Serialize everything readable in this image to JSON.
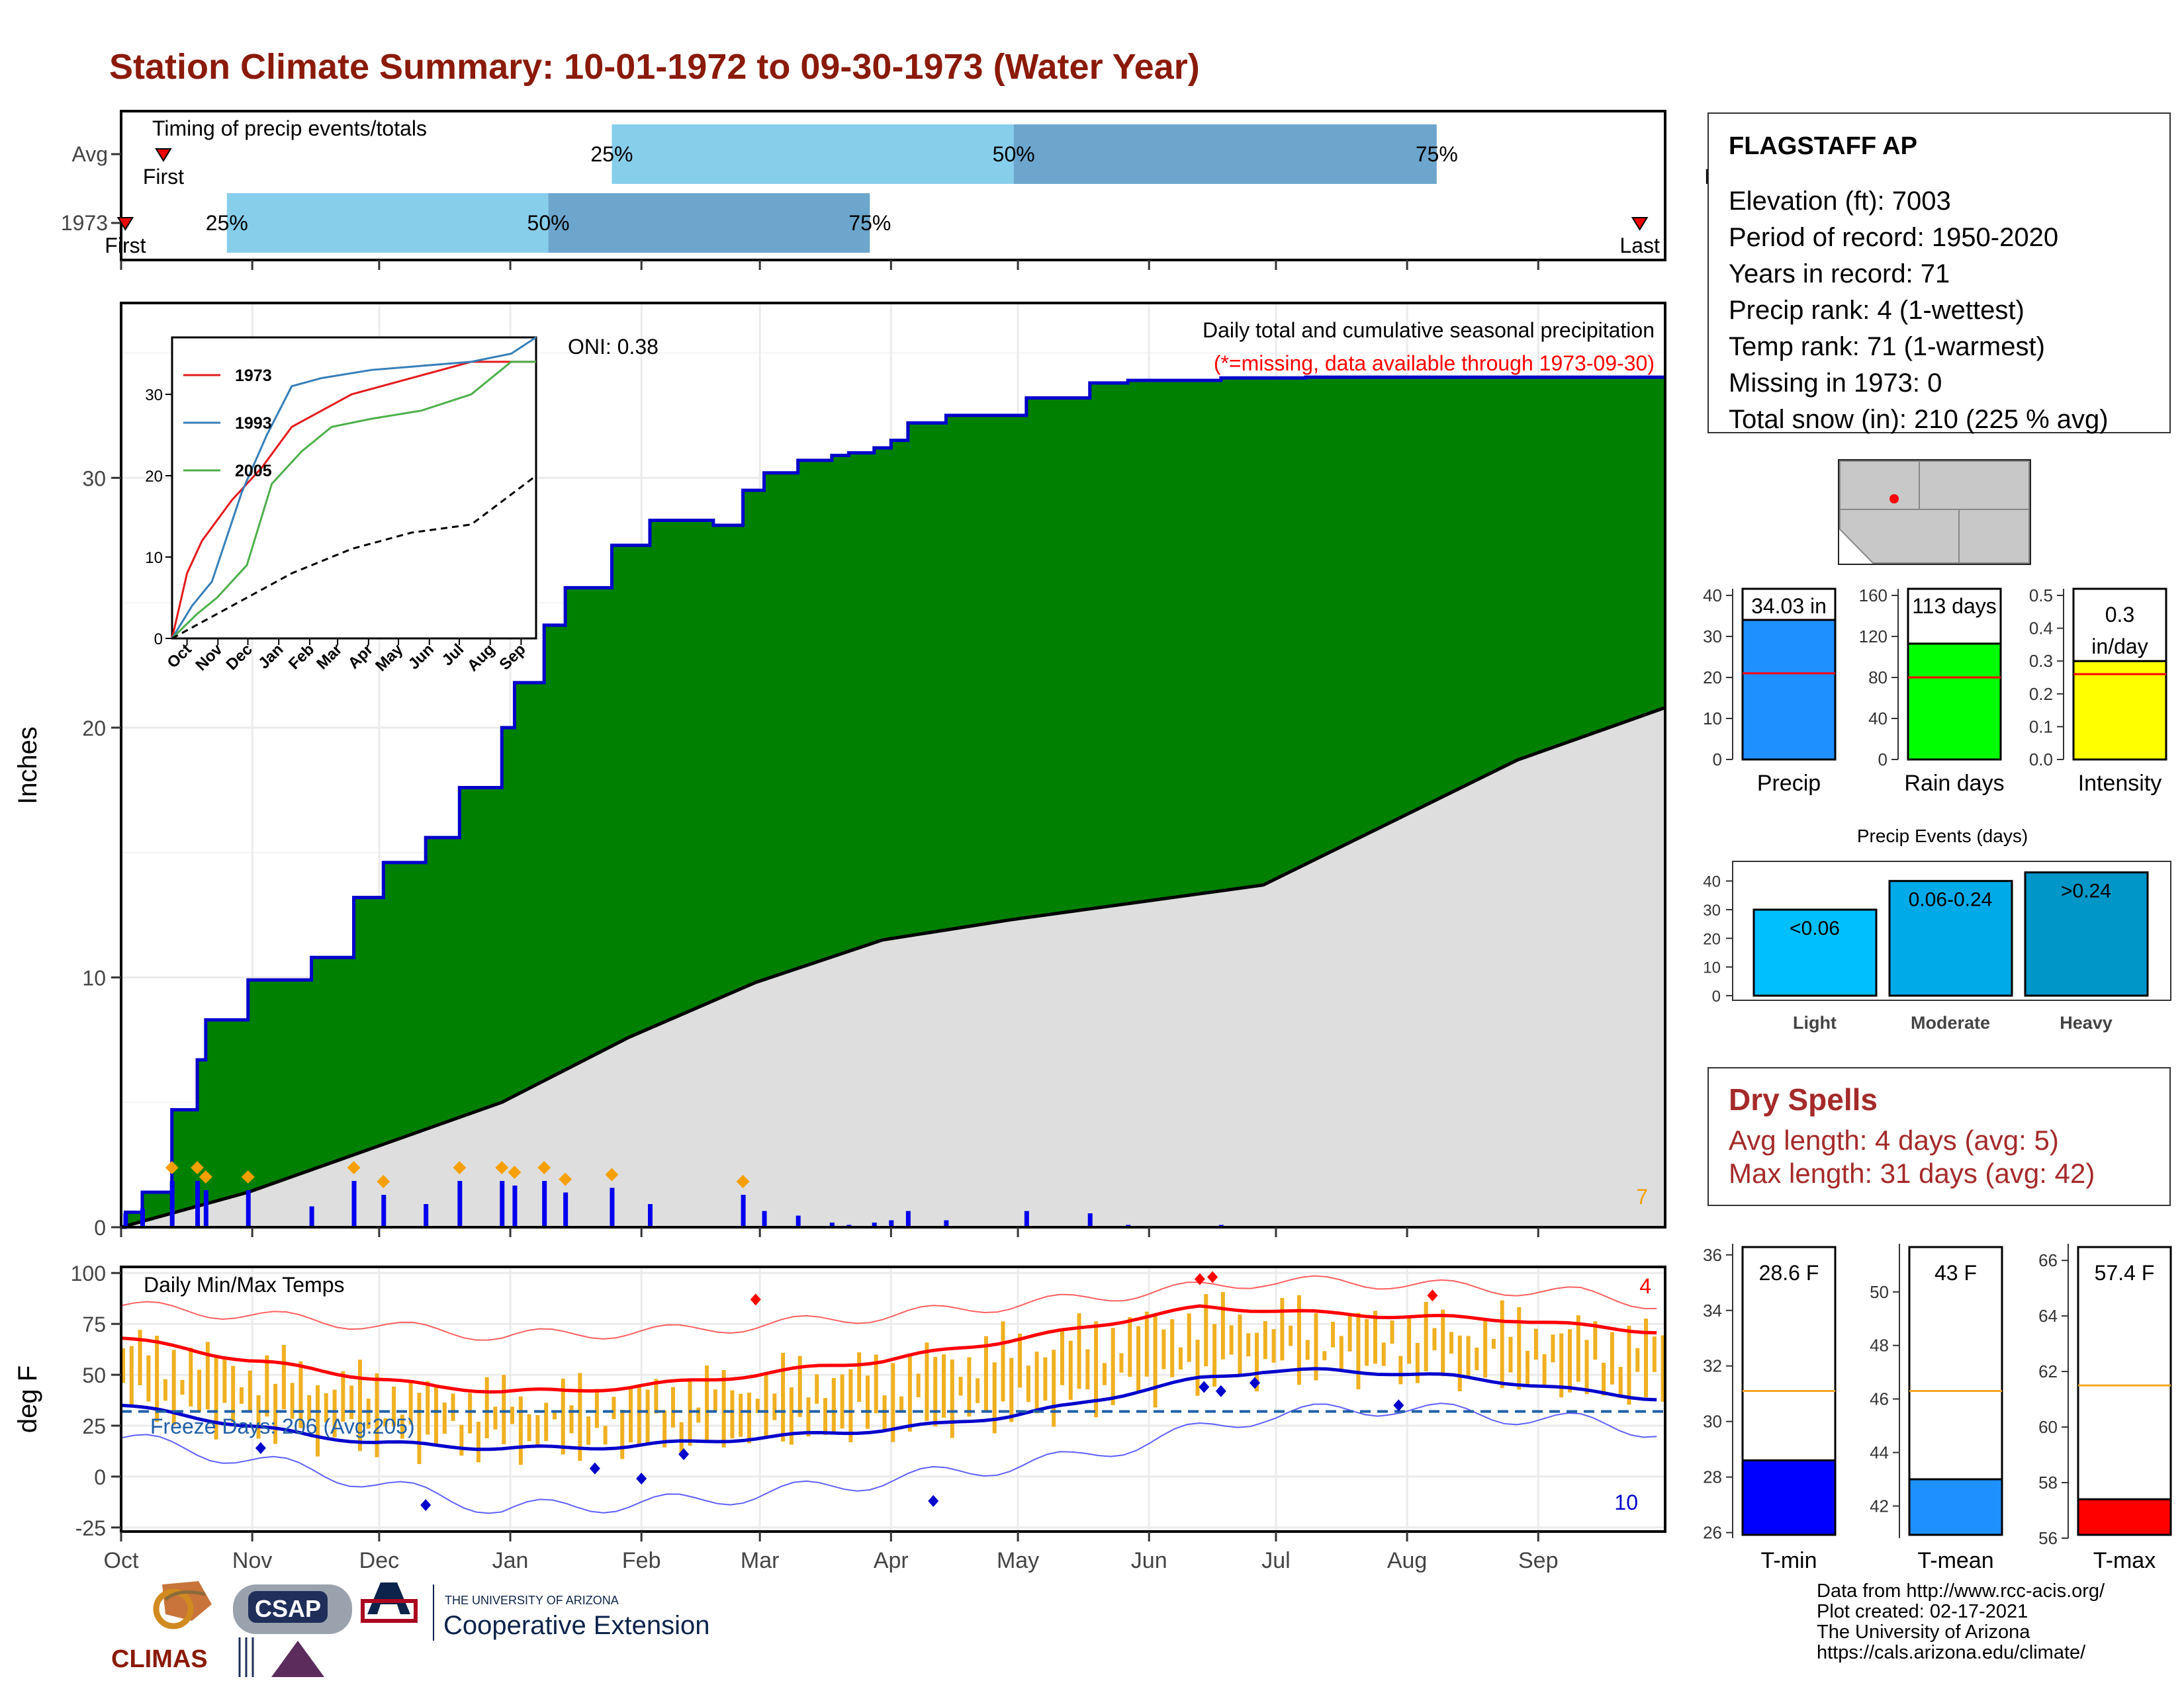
{
  "title": "Station Climate Summary: 10-01-1972 to 09-30-1973 (Water Year)",
  "colors": {
    "title": "#8b1a0a",
    "precip_fill": "#008000",
    "precip_line": "#0000cc",
    "avg_fill": "#dedede",
    "timing_light": "#87ceeb",
    "timing_dark": "#6ca6cd",
    "temp_bar": "#f0b020",
    "tmax_line": "#ff0000",
    "tmin_line": "#0000cc",
    "freeze_line": "#1f5fa8"
  },
  "timing": {
    "title": "Timing of precip events/totals",
    "rows": [
      {
        "label": "Avg",
        "first": 10,
        "p25": 116,
        "p50": 211,
        "p75": 311,
        "last": 379,
        "first_label": "First",
        "last_label": "Last"
      },
      {
        "label": "1973",
        "first": 1,
        "p25": 25,
        "p50": 101,
        "p75": 177,
        "last": 359,
        "first_label": "First",
        "last_label": "Last"
      }
    ],
    "pct_labels": [
      "25%",
      "50%",
      "75%"
    ]
  },
  "precip_panel": {
    "ylabel": "Inches",
    "yticks": [
      0,
      10,
      20,
      30
    ],
    "ylim": [
      0,
      37
    ],
    "oni": "ONI: 0.38",
    "subtitle": "Daily total and cumulative seasonal precipitation",
    "missing_note": "(*=missing, data available through 1973-09-30)",
    "corner_count": "7"
  },
  "inset": {
    "x_ticks": [
      "Oct",
      "Nov",
      "Dec",
      "Jan",
      "Feb",
      "Mar",
      "Apr",
      "May",
      "Jun",
      "Jul",
      "Aug",
      "Sep"
    ],
    "y_ticks": [
      0,
      10,
      20,
      30
    ],
    "legend": [
      {
        "name": "1973",
        "color": "#e41a1c"
      },
      {
        "name": "1993",
        "color": "#377eb8"
      },
      {
        "name": "2005",
        "color": "#4daf4a"
      }
    ]
  },
  "temp_panel": {
    "ylabel": "deg F",
    "yticks": [
      -25,
      0,
      25,
      50,
      75,
      100
    ],
    "ylim": [
      -27,
      103
    ],
    "label": "Daily Min/Max Temps",
    "freeze_label": "Freeze Days: 206 (Avg:205)",
    "freeze_temp": 32,
    "record_high_count": "4",
    "record_low_count": "10"
  },
  "x_month_labels": [
    "Oct",
    "Nov",
    "Dec",
    "Jan",
    "Feb",
    "Mar",
    "Apr",
    "May",
    "Jun",
    "Jul",
    "Aug",
    "Sep"
  ],
  "station": {
    "name": "FLAGSTAFF AP",
    "lines": [
      "Elevation (ft): 7003",
      "Period of record: 1950-2020",
      "Years in record: 71",
      "Precip rank: 4 (1-wettest)",
      "Temp rank: 71 (1-warmest)",
      "Missing in 1973: 0",
      "Total snow (in): 210 (225 % avg)"
    ]
  },
  "summary_bars": [
    {
      "name": "Precip",
      "value": 34.03,
      "avg": 21,
      "label": "34.03 in",
      "label2": "",
      "ymax": 40,
      "ticks": [
        0,
        10,
        20,
        30,
        40
      ],
      "color": "#1e90ff"
    },
    {
      "name": "Rain days",
      "value": 113,
      "avg": 80,
      "label": "113 days",
      "label2": "",
      "ymax": 160,
      "ticks": [
        0,
        40,
        80,
        120,
        160
      ],
      "color": "#00ff00"
    },
    {
      "name": "Intensity",
      "value": 0.3,
      "avg": 0.26,
      "label": "0.3",
      "label2": "in/day",
      "ymax": 0.5,
      "ticks": [
        0.0,
        0.1,
        0.2,
        0.3,
        0.4,
        0.5
      ],
      "color": "#ffff00"
    }
  ],
  "events": {
    "title": "Precip Events (days)",
    "ticks": [
      0,
      10,
      20,
      30,
      40
    ],
    "bars": [
      {
        "name": "Light",
        "value": 30,
        "label": "<0.06",
        "color": "#00bfff"
      },
      {
        "name": "Moderate",
        "value": 40,
        "label": "0.06-0.24",
        "color": "#00a9e8"
      },
      {
        "name": "Heavy",
        "value": 43,
        "label": ">0.24",
        "color": "#0096c7"
      }
    ]
  },
  "dry_spells": {
    "title": "Dry Spells",
    "avg_line": "Avg length: 4 days (avg: 5)",
    "max_line": "Max length: 31 days (avg: 42)"
  },
  "temp_bars": [
    {
      "name": "T-min",
      "value": 28.6,
      "avg": 31.1,
      "label": "28.6 F",
      "ylim": [
        25.8,
        36.4
      ],
      "ticks": [
        26,
        28,
        30,
        32,
        34,
        36
      ],
      "color": "#0000ff"
    },
    {
      "name": "T-mean",
      "value": 43,
      "avg": 46.3,
      "label": "43 F",
      "ylim": [
        40.8,
        51.8
      ],
      "ticks": [
        42,
        44,
        46,
        48,
        50
      ],
      "color": "#1e90ff"
    },
    {
      "name": "T-max",
      "value": 57.4,
      "avg": 61.5,
      "label": "57.4 F",
      "ylim": [
        56,
        66.6
      ],
      "ticks": [
        56,
        58,
        60,
        62,
        64,
        66
      ],
      "color": "#ff0000"
    }
  ],
  "credits": [
    "Data from http://www.rcc-acis.org/",
    "Plot created: 02-17-2021",
    "The University of Arizona",
    "https://cals.arizona.edu/climate/"
  ],
  "logos": {
    "climas": "CLIMAS",
    "csap": "CSAP",
    "ua_line1": "THE UNIVERSITY OF ARIZONA",
    "ua_line2": "Cooperative Extension"
  },
  "chart_data": [
    {
      "type": "area",
      "title": "Daily total and cumulative seasonal precipitation",
      "ylabel": "Inches",
      "ylim": [
        0,
        37
      ],
      "x_unit": "day of water year",
      "series": [
        {
          "name": "1973",
          "x": [
            1,
            5,
            12,
            18,
            20,
            30,
            45,
            55,
            62,
            72,
            80,
            90,
            93,
            100,
            105,
            116,
            125,
            140,
            147,
            152,
            160,
            168,
            172,
            178,
            182,
            186,
            195,
            214,
            229,
            238,
            260,
            280,
            300,
            308,
            318,
            340,
            365
          ],
          "values": [
            0.6,
            1.4,
            4.7,
            6.7,
            8.3,
            9.9,
            10.8,
            13.2,
            14.6,
            15.6,
            17.6,
            20.0,
            21.8,
            24.1,
            25.6,
            27.3,
            28.3,
            28.1,
            29.5,
            30.2,
            30.7,
            30.9,
            31.0,
            31.2,
            31.5,
            32.2,
            32.5,
            33.2,
            33.8,
            33.9,
            34.0,
            34.03,
            34.03,
            34.03,
            34.03,
            34.03,
            34.03
          ]
        },
        {
          "name": "Average",
          "x": [
            0,
            30,
            60,
            90,
            120,
            150,
            180,
            210,
            240,
            270,
            300,
            330,
            365
          ],
          "values": [
            0,
            1.4,
            3.2,
            5.0,
            7.6,
            9.8,
            11.5,
            12.3,
            13.0,
            13.7,
            16.2,
            18.7,
            20.8
          ]
        }
      ]
    },
    {
      "type": "line",
      "title": "Daily Min/Max Temps",
      "ylabel": "deg F",
      "ylim": [
        -27,
        103
      ],
      "x_unit": "day of water year",
      "series": [
        {
          "name": "Avg max",
          "x": [
            0,
            15,
            30,
            45,
            60,
            75,
            90,
            105,
            120,
            135,
            150,
            165,
            180,
            195,
            210,
            225,
            240,
            255,
            270,
            285,
            300,
            315,
            330,
            345,
            365
          ],
          "values": [
            68,
            63,
            57,
            53,
            48,
            44,
            42,
            42,
            44,
            47,
            50,
            54,
            57,
            62,
            67,
            72,
            78,
            83,
            82,
            80,
            79,
            78,
            77,
            74,
            71
          ]
        },
        {
          "name": "Avg min",
          "x": [
            0,
            15,
            30,
            45,
            60,
            75,
            90,
            105,
            120,
            135,
            150,
            165,
            180,
            195,
            210,
            225,
            240,
            255,
            270,
            285,
            300,
            315,
            330,
            345,
            365
          ],
          "values": [
            35,
            30,
            25,
            20,
            17,
            15,
            14,
            14,
            15,
            17,
            19,
            21,
            23,
            26,
            30,
            35,
            42,
            48,
            52,
            52,
            51,
            49,
            46,
            42,
            38
          ]
        },
        {
          "name": "Record high",
          "x": [
            0,
            45,
            90,
            135,
            180,
            225,
            270,
            300,
            345,
            365
          ],
          "values": [
            84,
            77,
            69,
            72,
            79,
            87,
            96,
            95,
            90,
            84
          ]
        },
        {
          "name": "Record low",
          "x": [
            0,
            45,
            90,
            135,
            180,
            225,
            270,
            300,
            345,
            365
          ],
          "values": [
            19,
            3,
            -16,
            -12,
            -2,
            9,
            30,
            34,
            27,
            22
          ]
        }
      ]
    },
    {
      "type": "bar",
      "title": "",
      "categories": [
        "Precip",
        "Rain days",
        "Intensity"
      ],
      "values": [
        34.03,
        113,
        0.3
      ]
    },
    {
      "type": "bar",
      "title": "Precip Events (days)",
      "categories": [
        "Light",
        "Moderate",
        "Heavy"
      ],
      "values": [
        30,
        40,
        43
      ]
    },
    {
      "type": "bar",
      "title": "",
      "categories": [
        "T-min",
        "T-mean",
        "T-max"
      ],
      "values": [
        28.6,
        43,
        57.4
      ],
      "series": [
        {
          "name": "avg",
          "values": [
            31.1,
            46.3,
            61.5
          ]
        }
      ]
    }
  ]
}
